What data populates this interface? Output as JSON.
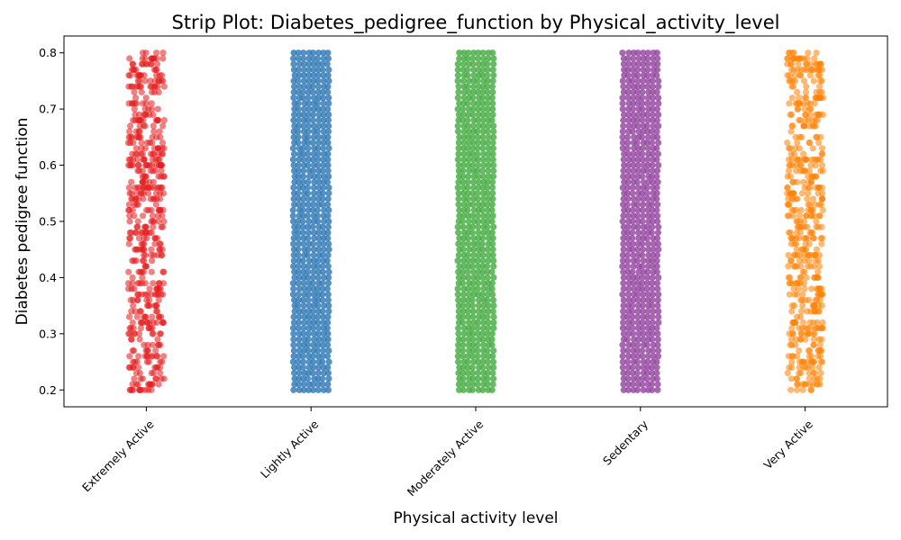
{
  "chart_data": {
    "type": "scatter",
    "subtype": "strip",
    "title": "Strip Plot: Diabetes_pedigree_function by Physical_activity_level",
    "xlabel": "Physical activity level",
    "ylabel": "Diabetes pedigree function",
    "ylim": [
      0.17,
      0.83
    ],
    "yticks": [
      0.2,
      0.3,
      0.4,
      0.5,
      0.6,
      0.7,
      0.8
    ],
    "ytick_labels": [
      "0.2",
      "0.3",
      "0.4",
      "0.5",
      "0.6",
      "0.7",
      "0.8"
    ],
    "y_step": 0.01,
    "y_range": [
      0.2,
      0.8
    ],
    "grid": false,
    "legend": "none",
    "categories": [
      "Extremely Active",
      "Lightly Active",
      "Moderately Active",
      "Sedentary",
      "Very Active"
    ],
    "series": [
      {
        "category": "Extremely Active",
        "color": "#e41a1c",
        "density": "sparse",
        "approx_points": 500
      },
      {
        "category": "Lightly Active",
        "color": "#377eb8",
        "density": "dense",
        "approx_points": 3000
      },
      {
        "category": "Moderately Active",
        "color": "#4daf4a",
        "density": "dense",
        "approx_points": 3000
      },
      {
        "category": "Sedentary",
        "color": "#984ea3",
        "density": "dense",
        "approx_points": 3000
      },
      {
        "category": "Very Active",
        "color": "#ff7f00",
        "density": "sparse",
        "approx_points": 500
      }
    ]
  }
}
